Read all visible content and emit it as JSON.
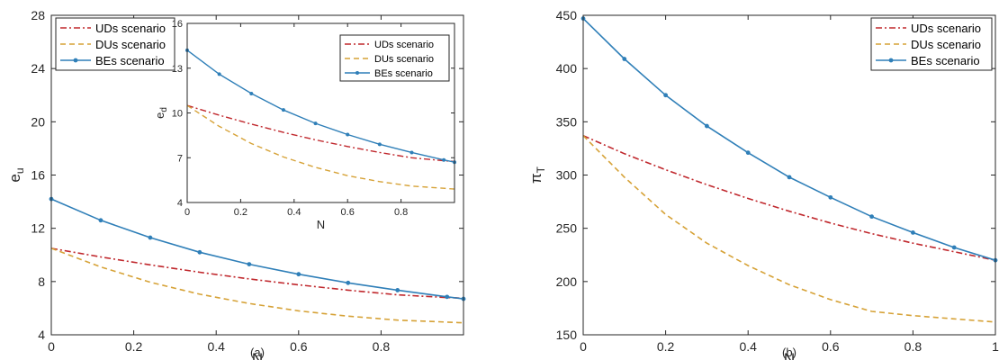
{
  "colors": {
    "uds": "#c0282d",
    "dus": "#d6a237",
    "bes": "#2f7fb8"
  },
  "chart_data": [
    {
      "type": "line",
      "caption": "(a)",
      "xlabel": "N",
      "ylabel_main": "e",
      "ylabel_sub": "u",
      "xlim": [
        0,
        1
      ],
      "ylim": [
        4,
        28
      ],
      "xticks": [
        0,
        0.2,
        0.4,
        0.6,
        0.8
      ],
      "xtick_labels": [
        "0",
        "0.2",
        "0.4",
        "0.6",
        "0.8"
      ],
      "yticks": [
        4,
        8,
        12,
        16,
        20,
        24,
        28
      ],
      "ytick_labels": [
        "4",
        "8",
        "12",
        "16",
        "20",
        "24",
        "28"
      ],
      "legend_position": "top-left",
      "x": [
        0,
        0.12,
        0.24,
        0.36,
        0.48,
        0.6,
        0.72,
        0.84,
        0.96,
        1.0
      ],
      "series": [
        {
          "name": "UDs scenario",
          "style": "dash-dot",
          "values": [
            10.5,
            9.85,
            9.25,
            8.7,
            8.2,
            7.75,
            7.35,
            7.0,
            6.8,
            6.75
          ]
        },
        {
          "name": "DUs scenario",
          "style": "dashed",
          "values": [
            10.5,
            9.1,
            7.95,
            7.05,
            6.35,
            5.8,
            5.4,
            5.1,
            4.95,
            4.9
          ]
        },
        {
          "name": "BEs scenario",
          "style": "solid-markers",
          "values": [
            14.2,
            12.6,
            11.3,
            10.2,
            9.3,
            8.55,
            7.9,
            7.35,
            6.85,
            6.7
          ]
        }
      ],
      "inset": {
        "xlabel": "N",
        "ylabel_main": "e",
        "ylabel_sub": "d",
        "xlim": [
          0,
          1
        ],
        "ylim": [
          4,
          16
        ],
        "xticks": [
          0,
          0.2,
          0.4,
          0.6,
          0.8
        ],
        "xtick_labels": [
          "0",
          "0.2",
          "0.4",
          "0.6",
          "0.8"
        ],
        "yticks": [
          4,
          7,
          10,
          13,
          16
        ],
        "ytick_labels": [
          "4",
          "7",
          "10",
          "13",
          "16"
        ],
        "legend_position": "top-right",
        "x": [
          0,
          0.12,
          0.24,
          0.36,
          0.48,
          0.6,
          0.72,
          0.84,
          0.96,
          1.0
        ],
        "series": [
          {
            "name": "UDs scenario",
            "style": "dash-dot",
            "values": [
              10.5,
              9.85,
              9.25,
              8.7,
              8.2,
              7.75,
              7.35,
              7.0,
              6.8,
              6.75
            ]
          },
          {
            "name": "DUs scenario",
            "style": "dashed",
            "values": [
              10.5,
              9.1,
              7.95,
              7.05,
              6.35,
              5.8,
              5.4,
              5.1,
              4.95,
              4.9
            ]
          },
          {
            "name": "BEs scenario",
            "style": "solid-markers",
            "values": [
              14.2,
              12.6,
              11.3,
              10.2,
              9.3,
              8.55,
              7.9,
              7.35,
              6.85,
              6.7
            ]
          }
        ]
      }
    },
    {
      "type": "line",
      "caption": "(b)",
      "xlabel": "N",
      "ylabel_main": "π",
      "ylabel_sub": "T",
      "xlim": [
        0,
        1
      ],
      "ylim": [
        150,
        450
      ],
      "xticks": [
        0,
        0.2,
        0.4,
        0.6,
        0.8,
        1
      ],
      "xtick_labels": [
        "0",
        "0.2",
        "0.4",
        "0.6",
        "0.8",
        "1"
      ],
      "yticks": [
        150,
        200,
        250,
        300,
        350,
        400,
        450
      ],
      "ytick_labels": [
        "150",
        "200",
        "250",
        "300",
        "350",
        "400",
        "450"
      ],
      "legend_position": "top-right",
      "x": [
        0,
        0.1,
        0.2,
        0.3,
        0.4,
        0.5,
        0.6,
        0.7,
        0.8,
        0.9,
        1.0
      ],
      "series": [
        {
          "name": "UDs scenario",
          "style": "dash-dot",
          "values": [
            337,
            320,
            305,
            291,
            278,
            266,
            255,
            245,
            236,
            228,
            220
          ]
        },
        {
          "name": "DUs scenario",
          "style": "dashed",
          "values": [
            337,
            298,
            263,
            236,
            215,
            197,
            183,
            172,
            168,
            165,
            162
          ]
        },
        {
          "name": "BEs scenario",
          "style": "solid-markers",
          "values": [
            447,
            409,
            375,
            346,
            321,
            298,
            279,
            261,
            246,
            232,
            220
          ]
        }
      ]
    }
  ]
}
